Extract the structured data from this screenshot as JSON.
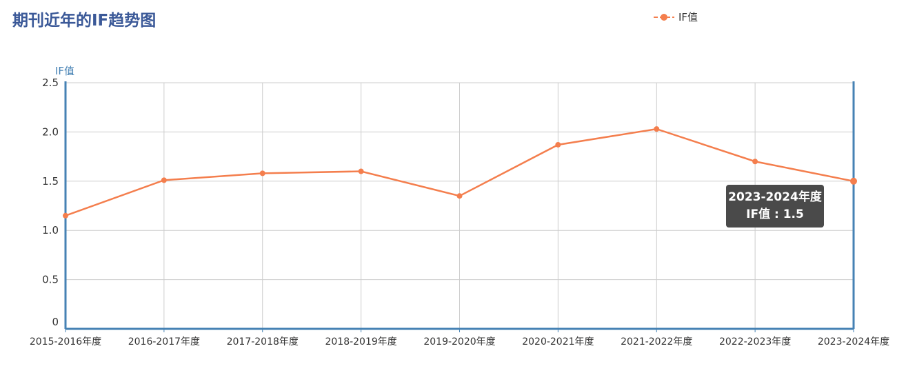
{
  "chart_data": {
    "type": "line",
    "title": "期刊近年的IF趋势图",
    "ylabel": "IF值",
    "xlabel": "",
    "categories": [
      "2015-2016年度",
      "2016-2017年度",
      "2017-2018年度",
      "2018-2019年度",
      "2019-2020年度",
      "2020-2021年度",
      "2021-2022年度",
      "2022-2023年度",
      "2023-2024年度"
    ],
    "series": [
      {
        "name": "IF值",
        "values": [
          1.15,
          1.51,
          1.58,
          1.6,
          1.35,
          1.87,
          2.03,
          1.7,
          1.5
        ],
        "color": "#f47e4d"
      }
    ],
    "ylim": [
      0,
      2.5
    ],
    "yticks": [
      "0",
      "0.5",
      "1.0",
      "1.5",
      "2.0",
      "2.5"
    ],
    "grid": true,
    "legend_position": "top-right",
    "axis_color": "#4682b4",
    "tooltip": {
      "category": "2023-2024年度",
      "text": "IF值 : 1.5"
    }
  }
}
